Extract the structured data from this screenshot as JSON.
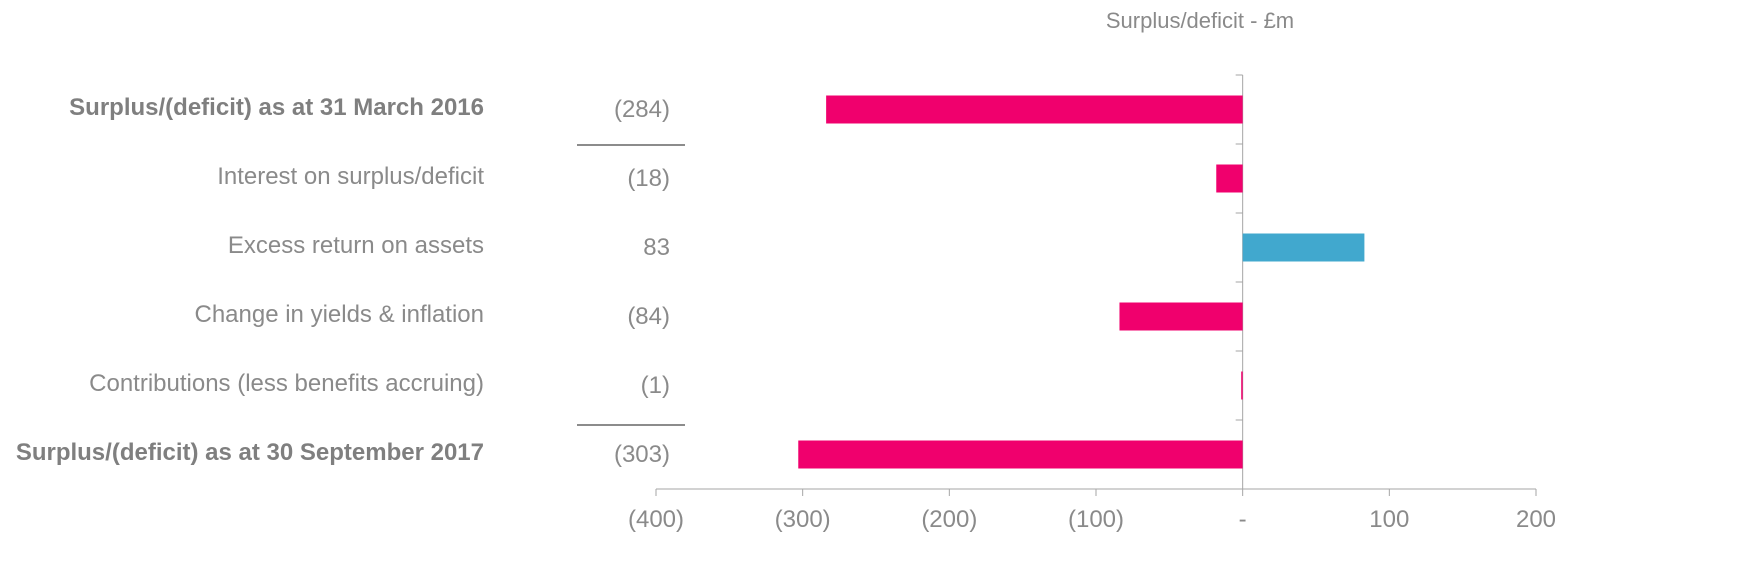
{
  "chart_data": {
    "type": "bar",
    "orientation": "horizontal",
    "title": "Surplus/deficit - £m",
    "xlim": [
      -400,
      200
    ],
    "x_ticks": [
      -400,
      -300,
      -200,
      -100,
      0,
      100,
      200
    ],
    "x_tick_labels": [
      "(400)",
      "(300)",
      "(200)",
      "(100)",
      "-",
      "100",
      "200"
    ],
    "rows": [
      {
        "label": "Surplus/(deficit) as at 31 March 2016",
        "value_label": "(284)",
        "value": -284,
        "bold": true,
        "color": "#f0006d"
      },
      {
        "label": "Interest on surplus/deficit",
        "value_label": "(18)",
        "value": -18,
        "bold": false,
        "color": "#f0006d"
      },
      {
        "label": "Excess return on assets",
        "value_label": "83",
        "value": 83,
        "bold": false,
        "color": "#41a8ce"
      },
      {
        "label": "Change in yields & inflation",
        "value_label": "(84)",
        "value": -84,
        "bold": false,
        "color": "#f0006d"
      },
      {
        "label": "Contributions (less benefits accruing)",
        "value_label": "(1)",
        "value": -1,
        "bold": false,
        "color": "#f0006d"
      },
      {
        "label": "Surplus/(deficit) as at 30 September 2017",
        "value_label": "(303)",
        "value": -303,
        "bold": true,
        "color": "#f0006d"
      }
    ],
    "colors": {
      "negative": "#f0006d",
      "positive": "#41a8ce",
      "axis": "#a6a6a6",
      "text": "#8a8a8a"
    }
  }
}
